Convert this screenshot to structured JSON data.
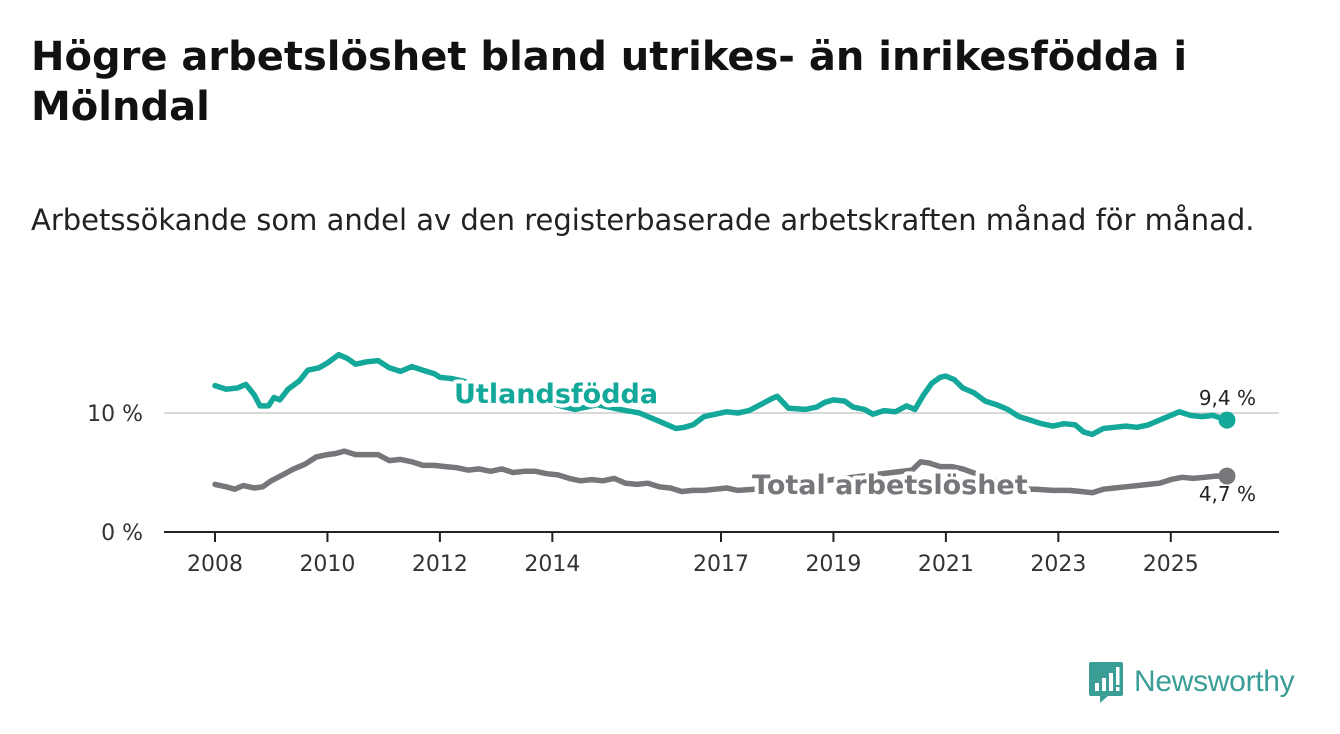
{
  "header": {
    "title": "Högre arbetslöshet bland utrikes- än inrikesfödda i Mölndal",
    "subtitle": "Arbetssökande som andel av den registerbaserade arbetskraften månad för månad."
  },
  "brand": {
    "name": "Newsworthy",
    "color": "#3a9e96"
  },
  "chart_data": {
    "type": "line",
    "title": "Högre arbetslöshet bland utrikes- än inrikesfödda i Mölndal",
    "subtitle": "Arbetssökande som andel av den registerbaserade arbetskraften månad för månad.",
    "xlabel": "",
    "ylabel": "",
    "x_range": [
      2008,
      2026.0
    ],
    "ylim": [
      0,
      15
    ],
    "x_ticks": [
      {
        "value": 2008,
        "label": "2008"
      },
      {
        "value": 2010,
        "label": "2010"
      },
      {
        "value": 2012,
        "label": "2012"
      },
      {
        "value": 2014,
        "label": "2014"
      },
      {
        "value": 2017,
        "label": "2017"
      },
      {
        "value": 2019,
        "label": "2019"
      },
      {
        "value": 2021,
        "label": "2021"
      },
      {
        "value": 2023,
        "label": "2023"
      },
      {
        "value": 2025,
        "label": "2025"
      }
    ],
    "y_ticks": [
      {
        "value": 0,
        "label": "0 %"
      },
      {
        "value": 10,
        "label": "10 %"
      }
    ],
    "grid": true,
    "series": [
      {
        "name": "Utlandsfödda",
        "color": "#14a89a",
        "end_label": "9,4 %",
        "points": [
          [
            2008.0,
            12.3
          ],
          [
            2008.2,
            12.0
          ],
          [
            2008.4,
            12.1
          ],
          [
            2008.55,
            12.4
          ],
          [
            2008.7,
            11.5
          ],
          [
            2008.8,
            10.6
          ],
          [
            2008.95,
            10.6
          ],
          [
            2009.05,
            11.3
          ],
          [
            2009.15,
            11.1
          ],
          [
            2009.3,
            12.0
          ],
          [
            2009.5,
            12.7
          ],
          [
            2009.65,
            13.6
          ],
          [
            2009.85,
            13.8
          ],
          [
            2010.0,
            14.2
          ],
          [
            2010.2,
            14.9
          ],
          [
            2010.35,
            14.6
          ],
          [
            2010.5,
            14.1
          ],
          [
            2010.7,
            14.3
          ],
          [
            2010.9,
            14.4
          ],
          [
            2011.1,
            13.8
          ],
          [
            2011.3,
            13.5
          ],
          [
            2011.5,
            13.9
          ],
          [
            2011.7,
            13.6
          ],
          [
            2011.9,
            13.3
          ],
          [
            2012.0,
            13.0
          ],
          [
            2012.2,
            12.9
          ],
          [
            2012.4,
            12.7
          ],
          [
            2014.4,
            10.3
          ],
          [
            2014.8,
            10.7
          ],
          [
            2015.2,
            10.3
          ],
          [
            2015.55,
            10.0
          ],
          [
            2015.8,
            9.5
          ],
          [
            2016.0,
            9.1
          ],
          [
            2016.2,
            8.7
          ],
          [
            2016.35,
            8.8
          ],
          [
            2016.5,
            9.0
          ],
          [
            2016.7,
            9.7
          ],
          [
            2016.9,
            9.9
          ],
          [
            2017.1,
            10.1
          ],
          [
            2017.3,
            10.0
          ],
          [
            2017.5,
            10.2
          ],
          [
            2017.7,
            10.7
          ],
          [
            2017.9,
            11.2
          ],
          [
            2018.0,
            11.4
          ],
          [
            2018.2,
            10.4
          ],
          [
            2018.5,
            10.3
          ],
          [
            2018.7,
            10.5
          ],
          [
            2018.85,
            10.9
          ],
          [
            2019.0,
            11.1
          ],
          [
            2019.2,
            11.0
          ],
          [
            2019.35,
            10.5
          ],
          [
            2019.55,
            10.3
          ],
          [
            2019.7,
            9.9
          ],
          [
            2019.9,
            10.2
          ],
          [
            2020.1,
            10.1
          ],
          [
            2020.3,
            10.6
          ],
          [
            2020.45,
            10.3
          ],
          [
            2020.6,
            11.5
          ],
          [
            2020.75,
            12.5
          ],
          [
            2020.9,
            13.0
          ],
          [
            2021.0,
            13.1
          ],
          [
            2021.15,
            12.8
          ],
          [
            2021.3,
            12.1
          ],
          [
            2021.5,
            11.7
          ],
          [
            2021.7,
            11.0
          ],
          [
            2021.9,
            10.7
          ],
          [
            2022.1,
            10.3
          ],
          [
            2022.3,
            9.7
          ],
          [
            2022.5,
            9.4
          ],
          [
            2022.7,
            9.1
          ],
          [
            2022.9,
            8.9
          ],
          [
            2023.1,
            9.1
          ],
          [
            2023.3,
            9.0
          ],
          [
            2023.45,
            8.4
          ],
          [
            2023.6,
            8.2
          ],
          [
            2023.8,
            8.7
          ],
          [
            2024.0,
            8.8
          ],
          [
            2024.2,
            8.9
          ],
          [
            2024.4,
            8.8
          ],
          [
            2024.6,
            9.0
          ],
          [
            2024.8,
            9.4
          ],
          [
            2025.0,
            9.8
          ],
          [
            2025.15,
            10.1
          ],
          [
            2025.35,
            9.8
          ],
          [
            2025.55,
            9.7
          ],
          [
            2025.75,
            9.8
          ],
          [
            2026.0,
            9.4
          ]
        ]
      },
      {
        "name": "Total arbetslöshet",
        "color": "#77767b",
        "end_label": "4,7 %",
        "points": [
          [
            2008.0,
            4.0
          ],
          [
            2008.2,
            3.8
          ],
          [
            2008.35,
            3.6
          ],
          [
            2008.5,
            3.9
          ],
          [
            2008.7,
            3.7
          ],
          [
            2008.85,
            3.8
          ],
          [
            2009.0,
            4.3
          ],
          [
            2009.2,
            4.8
          ],
          [
            2009.4,
            5.3
          ],
          [
            2009.6,
            5.7
          ],
          [
            2009.8,
            6.3
          ],
          [
            2010.0,
            6.5
          ],
          [
            2010.15,
            6.6
          ],
          [
            2010.3,
            6.8
          ],
          [
            2010.5,
            6.5
          ],
          [
            2010.7,
            6.5
          ],
          [
            2010.9,
            6.5
          ],
          [
            2011.1,
            6.0
          ],
          [
            2011.3,
            6.1
          ],
          [
            2011.5,
            5.9
          ],
          [
            2011.7,
            5.6
          ],
          [
            2011.9,
            5.6
          ],
          [
            2012.1,
            5.5
          ],
          [
            2012.3,
            5.4
          ],
          [
            2012.5,
            5.2
          ],
          [
            2012.7,
            5.3
          ],
          [
            2012.9,
            5.1
          ],
          [
            2013.1,
            5.3
          ],
          [
            2013.3,
            5.0
          ],
          [
            2013.5,
            5.1
          ],
          [
            2013.7,
            5.1
          ],
          [
            2013.9,
            4.9
          ],
          [
            2014.1,
            4.8
          ],
          [
            2014.3,
            4.5
          ],
          [
            2014.5,
            4.3
          ],
          [
            2014.7,
            4.4
          ],
          [
            2014.9,
            4.3
          ],
          [
            2015.1,
            4.5
          ],
          [
            2015.3,
            4.1
          ],
          [
            2015.5,
            4.0
          ],
          [
            2015.7,
            4.1
          ],
          [
            2015.9,
            3.8
          ],
          [
            2016.1,
            3.7
          ],
          [
            2016.3,
            3.4
          ],
          [
            2016.5,
            3.5
          ],
          [
            2016.7,
            3.5
          ],
          [
            2016.9,
            3.6
          ],
          [
            2017.1,
            3.7
          ],
          [
            2017.3,
            3.5
          ],
          [
            2017.6,
            3.6
          ],
          [
            2020.4,
            5.2
          ],
          [
            2020.55,
            5.9
          ],
          [
            2020.7,
            5.8
          ],
          [
            2020.9,
            5.5
          ],
          [
            2021.1,
            5.5
          ],
          [
            2021.3,
            5.3
          ],
          [
            2022.3,
            3.6
          ],
          [
            2022.6,
            3.6
          ],
          [
            2022.9,
            3.5
          ],
          [
            2023.2,
            3.5
          ],
          [
            2023.4,
            3.4
          ],
          [
            2023.6,
            3.3
          ],
          [
            2023.8,
            3.6
          ],
          [
            2024.0,
            3.7
          ],
          [
            2024.2,
            3.8
          ],
          [
            2024.4,
            3.9
          ],
          [
            2024.6,
            4.0
          ],
          [
            2024.8,
            4.1
          ],
          [
            2025.0,
            4.4
          ],
          [
            2025.2,
            4.6
          ],
          [
            2025.4,
            4.5
          ],
          [
            2025.6,
            4.6
          ],
          [
            2025.8,
            4.7
          ],
          [
            2026.0,
            4.7
          ]
        ]
      }
    ]
  }
}
